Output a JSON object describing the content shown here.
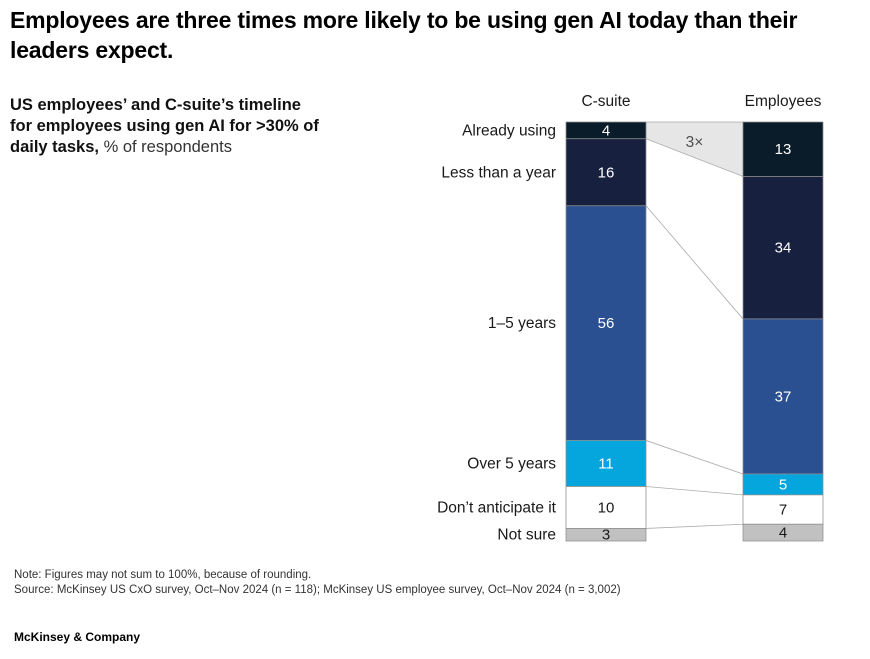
{
  "header": {
    "title": "Employees are three times more likely to be using gen AI today than their leaders expect."
  },
  "subtitle": {
    "bold": "US employees’ and C-suite’s timeline for employees using gen AI for >30% of daily tasks,",
    "regular": " % of respondents"
  },
  "chart_data": {
    "type": "bar",
    "variant": "stacked-column-slope-comparison",
    "title": "US employees’ and C-suite’s timeline for employees using gen AI for >30% of daily tasks, % of respondents",
    "categories": [
      "Already using",
      "Less than a year",
      "1–5 years",
      "Over 5 years",
      "Don’t anticipate it",
      "Not sure"
    ],
    "series": [
      {
        "name": "C-suite",
        "values": [
          4,
          16,
          56,
          11,
          10,
          3
        ]
      },
      {
        "name": "Employees",
        "values": [
          13,
          34,
          37,
          5,
          7,
          4
        ]
      }
    ],
    "annotation": "3×",
    "ylim": [
      0,
      100
    ],
    "segment_colors": [
      "#0a1b29",
      "#17213f",
      "#2b5092",
      "#05a6dd",
      "#ffffff",
      "#c1c1c1"
    ],
    "value_text_colors": [
      "#ffffff",
      "#ffffff",
      "#ffffff",
      "#ffffff",
      "#1a1a1a",
      "#1a1a1a"
    ],
    "wedge_fill": "#e6e6e6",
    "line_color": "#ababab",
    "label_color": "#1a1a1a",
    "annotation_color": "#4d4d4d"
  },
  "footer": {
    "note": "Note: Figures may not sum to 100%, because of rounding.",
    "source": "Source: McKinsey US CxO survey, Oct–Nov 2024 (n = 118); McKinsey US employee survey, Oct–Nov 2024 (n = 3,002)",
    "brand": "McKinsey & Company"
  }
}
